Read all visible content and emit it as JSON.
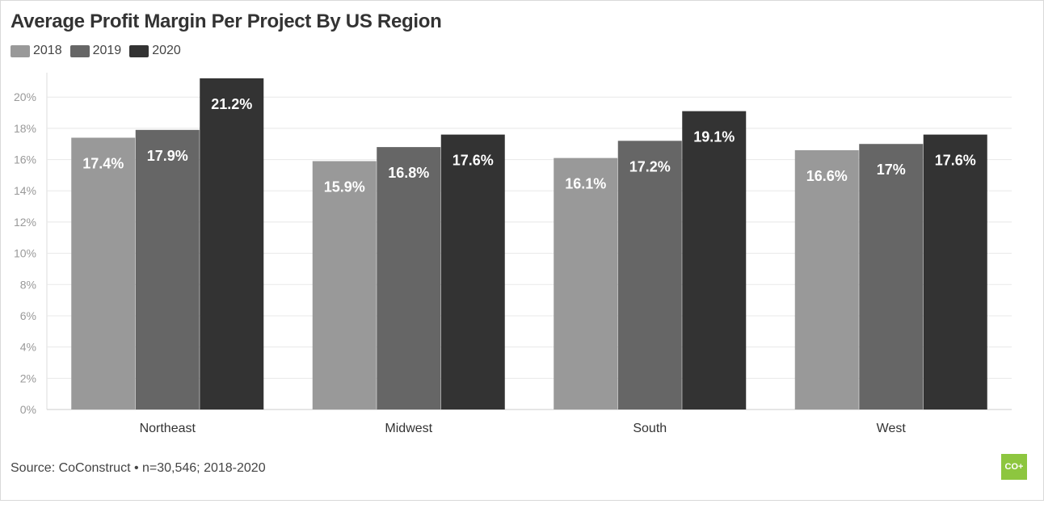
{
  "title": "Average Profit Margin Per Project By US Region",
  "source": "Source: CoConstruct • n=30,546; 2018-2020",
  "logo_text": "CO+",
  "colors": {
    "grid": "#e8e8e8",
    "axis_text": "#999999",
    "category_text": "#333333",
    "label_text": "#ffffff",
    "logo": "#8dc63f"
  },
  "legend": [
    {
      "label": "2018",
      "color": "#999999"
    },
    {
      "label": "2019",
      "color": "#666666"
    },
    {
      "label": "2020",
      "color": "#333333"
    }
  ],
  "chart_data": {
    "type": "bar",
    "title": "Average Profit Margin Per Project By US Region",
    "categories": [
      "Northeast",
      "Midwest",
      "South",
      "West"
    ],
    "series": [
      {
        "name": "2018",
        "color": "#999999",
        "values": [
          17.4,
          15.9,
          16.1,
          16.6
        ],
        "labels": [
          "17.4%",
          "15.9%",
          "16.1%",
          "16.6%"
        ]
      },
      {
        "name": "2019",
        "color": "#666666",
        "values": [
          17.9,
          16.8,
          17.2,
          17.0
        ],
        "labels": [
          "17.9%",
          "16.8%",
          "17.2%",
          "17%"
        ]
      },
      {
        "name": "2020",
        "color": "#333333",
        "values": [
          21.2,
          17.6,
          19.1,
          17.6
        ],
        "labels": [
          "21.2%",
          "17.6%",
          "19.1%",
          "17.6%"
        ]
      }
    ],
    "ylim": [
      0,
      21.2
    ],
    "yticks": [
      0,
      2,
      4,
      6,
      8,
      10,
      12,
      14,
      16,
      18,
      20
    ],
    "ytick_labels": [
      "0%",
      "2%",
      "4%",
      "6%",
      "8%",
      "10%",
      "12%",
      "14%",
      "16%",
      "18%",
      "20%"
    ],
    "grid": true,
    "legend_position": "top-left",
    "xlabel": "",
    "ylabel": ""
  }
}
